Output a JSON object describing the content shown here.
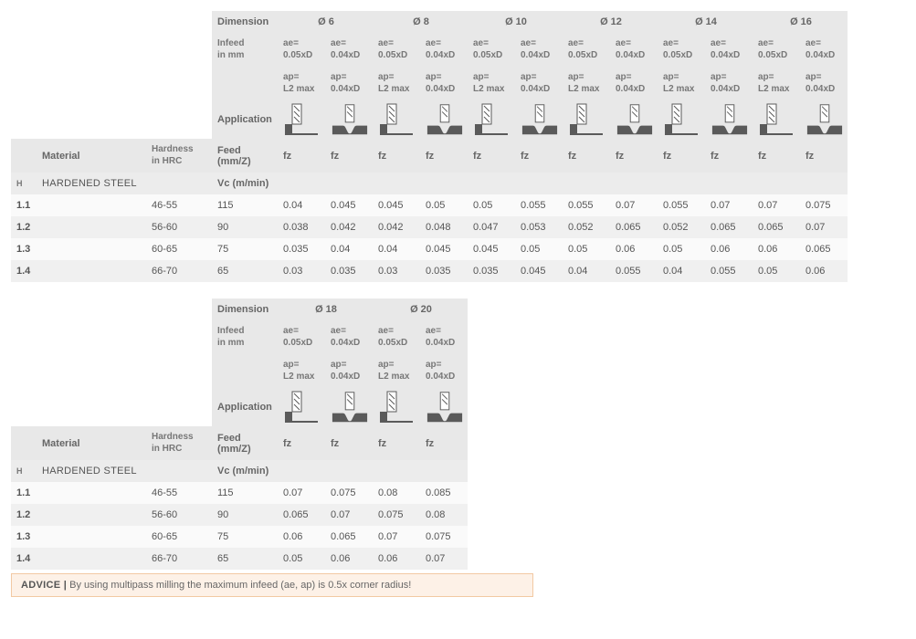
{
  "labels": {
    "dimension": "Dimension",
    "infeed": "Infeed\nin mm",
    "application": "Application",
    "material": "Material",
    "hardness": "Hardness\nin HRC",
    "feed": "Feed (mm/Z)",
    "vc": "Vc (m/min)",
    "fz": "fz",
    "ae1": "ae=\n0.05xD",
    "ae2": "ae=\n0.04xD",
    "ap1": "ap=\nL2 max",
    "ap2": "ap=\n0.04xD",
    "matcode": "H",
    "matname": "HARDENED STEEL"
  },
  "table1": {
    "diameters": [
      "Ø 6",
      "Ø 8",
      "Ø 10",
      "Ø 12",
      "Ø 14",
      "Ø 16"
    ],
    "rows": [
      {
        "code": "1.1",
        "hrc": "46-55",
        "vc": "115",
        "fz": [
          "0.04",
          "0.045",
          "0.045",
          "0.05",
          "0.05",
          "0.055",
          "0.055",
          "0.07",
          "0.055",
          "0.07",
          "0.07",
          "0.075"
        ]
      },
      {
        "code": "1.2",
        "hrc": "56-60",
        "vc": "90",
        "fz": [
          "0.038",
          "0.042",
          "0.042",
          "0.048",
          "0.047",
          "0.053",
          "0.052",
          "0.065",
          "0.052",
          "0.065",
          "0.065",
          "0.07"
        ]
      },
      {
        "code": "1.3",
        "hrc": "60-65",
        "vc": "75",
        "fz": [
          "0.035",
          "0.04",
          "0.04",
          "0.045",
          "0.045",
          "0.05",
          "0.05",
          "0.06",
          "0.05",
          "0.06",
          "0.06",
          "0.065"
        ]
      },
      {
        "code": "1.4",
        "hrc": "66-70",
        "vc": "65",
        "fz": [
          "0.03",
          "0.035",
          "0.03",
          "0.035",
          "0.035",
          "0.045",
          "0.04",
          "0.055",
          "0.04",
          "0.055",
          "0.05",
          "0.06"
        ]
      }
    ]
  },
  "table2": {
    "diameters": [
      "Ø 18",
      "Ø 20"
    ],
    "rows": [
      {
        "code": "1.1",
        "hrc": "46-55",
        "vc": "115",
        "fz": [
          "0.07",
          "0.075",
          "0.08",
          "0.085"
        ]
      },
      {
        "code": "1.2",
        "hrc": "56-60",
        "vc": "90",
        "fz": [
          "0.065",
          "0.07",
          "0.075",
          "0.08"
        ]
      },
      {
        "code": "1.3",
        "hrc": "60-65",
        "vc": "75",
        "fz": [
          "0.06",
          "0.065",
          "0.07",
          "0.075"
        ]
      },
      {
        "code": "1.4",
        "hrc": "66-70",
        "vc": "65",
        "fz": [
          "0.05",
          "0.06",
          "0.06",
          "0.07"
        ]
      }
    ]
  },
  "advice": {
    "label": "ADVICE |",
    "text": " By using multipass milling the maximum infeed (ae, ap) is 0.5x corner radius!"
  },
  "colors": {
    "hdr_bg": "#e8e8e8",
    "row_odd": "#fafafa",
    "row_even": "#f0f0f0",
    "icon_fill": "#5a5a5a",
    "advice_bg": "#fdf1e7",
    "advice_border": "#f2c9a3"
  }
}
